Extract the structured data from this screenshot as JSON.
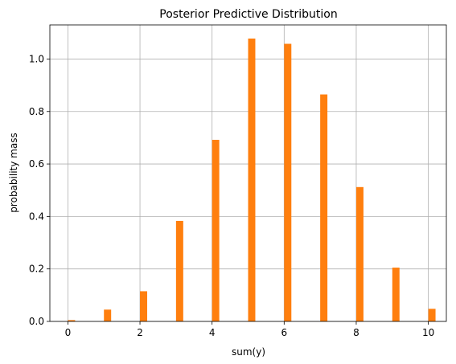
{
  "chart_data": {
    "type": "bar",
    "title": "Posterior Predictive Distribution",
    "xlabel": "sum(y)",
    "ylabel": "probability mass",
    "x": [
      0,
      1,
      2,
      3,
      4,
      5,
      6,
      7,
      8,
      9,
      10
    ],
    "values": [
      0.005,
      0.045,
      0.115,
      0.383,
      0.692,
      1.078,
      1.058,
      0.865,
      0.512,
      0.205,
      0.048
    ],
    "bar_width": 0.2,
    "bar_offset": 0.1,
    "xlim": [
      -0.5,
      10.5
    ],
    "ylim": [
      0,
      1.13
    ],
    "xticks": [
      0,
      2,
      4,
      6,
      8,
      10
    ],
    "xtick_labels": [
      "0",
      "2",
      "4",
      "6",
      "8",
      "10"
    ],
    "yticks": [
      0.0,
      0.2,
      0.4,
      0.6,
      0.8,
      1.0
    ],
    "ytick_labels": [
      "0.0",
      "0.2",
      "0.4",
      "0.6",
      "0.8",
      "1.0"
    ],
    "grid": true,
    "bar_color": "#ff7f0e",
    "grid_color": "#b0b0b0",
    "axis_color": "#000000"
  }
}
